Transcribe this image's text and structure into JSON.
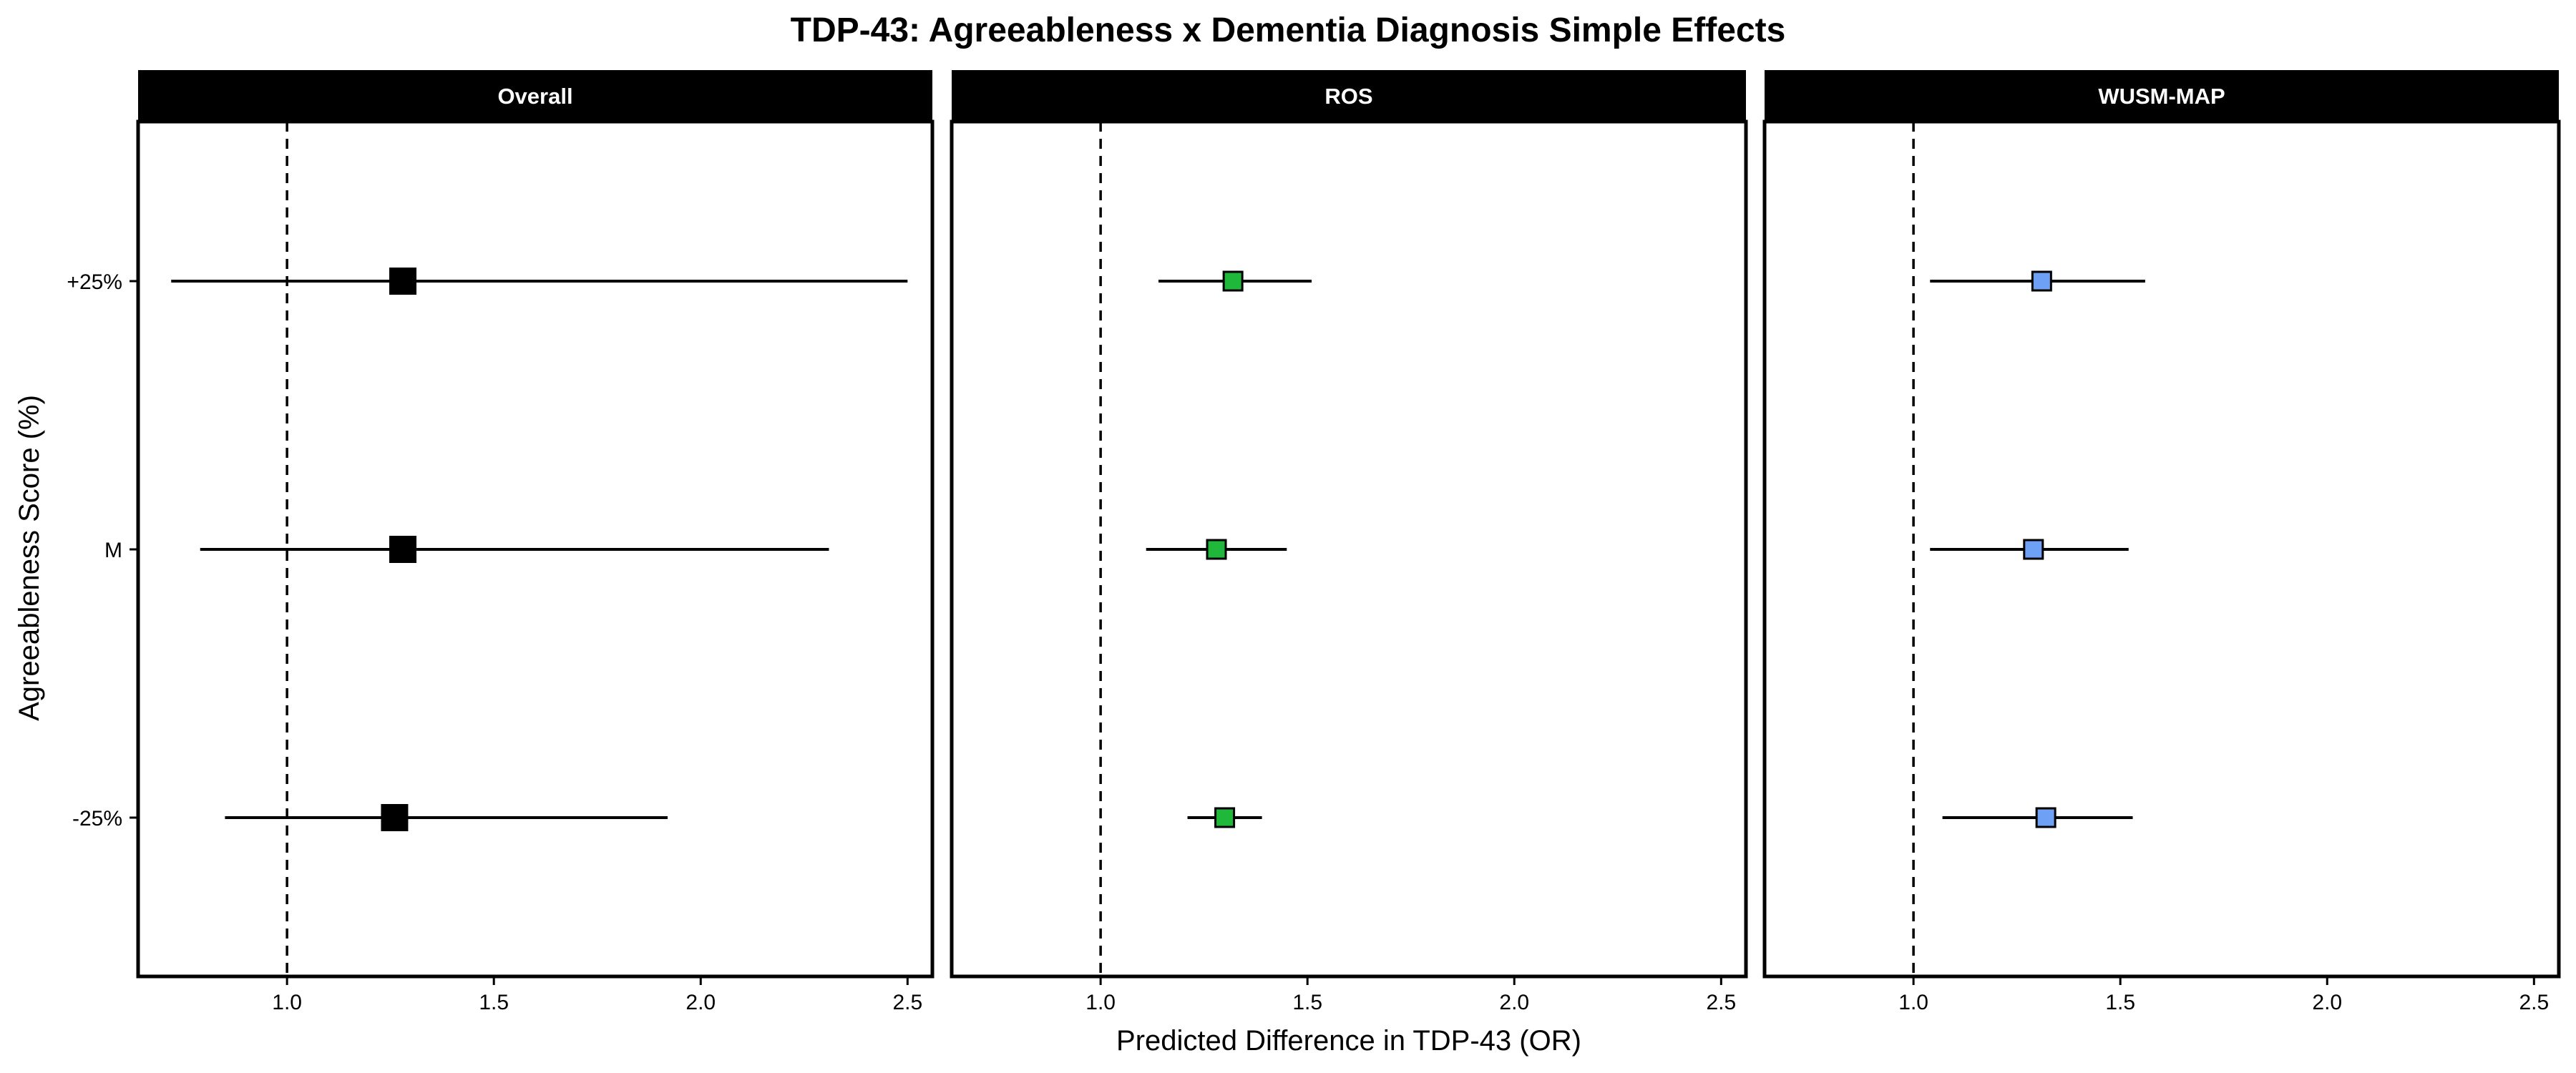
{
  "chart_data": {
    "type": "forest",
    "title": "TDP-43: Agreeableness x Dementia Diagnosis Simple Effects",
    "xlabel": "Predicted Difference in TDP-43 (OR)",
    "ylabel": "Agreeableness Score (%)",
    "categories": [
      "+25%",
      "M",
      "-25%"
    ],
    "xlim": [
      0.64,
      2.56
    ],
    "xticks": [
      "1.0",
      "1.5",
      "2.0",
      "2.5"
    ],
    "xtick_values": [
      1.0,
      1.5,
      2.0,
      2.5
    ],
    "reference_line": 1.0,
    "grid": false,
    "panels": [
      {
        "name": "Overall",
        "color": "#000000",
        "points": [
          {
            "category": "+25%",
            "estimate": 1.28,
            "lower": 0.72,
            "upper": 2.5
          },
          {
            "category": "M",
            "estimate": 1.28,
            "lower": 0.79,
            "upper": 2.31
          },
          {
            "category": "-25%",
            "estimate": 1.26,
            "lower": 0.85,
            "upper": 1.92
          }
        ]
      },
      {
        "name": "ROS",
        "color": "#1fb83a",
        "points": [
          {
            "category": "+25%",
            "estimate": 1.32,
            "lower": 1.14,
            "upper": 1.51
          },
          {
            "category": "M",
            "estimate": 1.28,
            "lower": 1.11,
            "upper": 1.45
          },
          {
            "category": "-25%",
            "estimate": 1.3,
            "lower": 1.21,
            "upper": 1.39
          }
        ]
      },
      {
        "name": "WUSM-MAP",
        "color": "#6ea0f5",
        "points": [
          {
            "category": "+25%",
            "estimate": 1.31,
            "lower": 1.04,
            "upper": 1.56
          },
          {
            "category": "M",
            "estimate": 1.29,
            "lower": 1.04,
            "upper": 1.52
          },
          {
            "category": "-25%",
            "estimate": 1.32,
            "lower": 1.07,
            "upper": 1.53
          }
        ]
      }
    ]
  }
}
